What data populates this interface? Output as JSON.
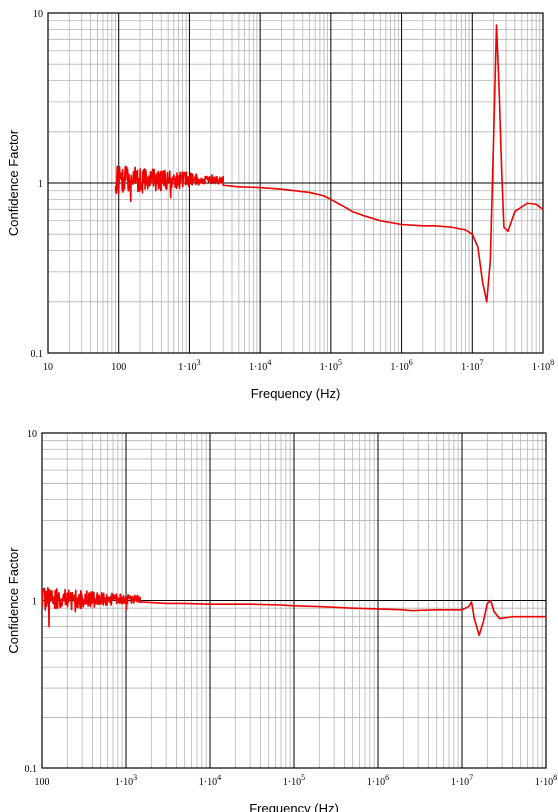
{
  "chart_data": [
    {
      "type": "line",
      "xlabel": "Frequency (Hz)",
      "ylabel": "Confidence Factor",
      "x_scale": "log",
      "y_scale": "log",
      "xlim": [
        10,
        100000000
      ],
      "ylim": [
        0.1,
        10
      ],
      "x_ticks": [
        "10",
        "100",
        "1·10^3",
        "1·10^4",
        "1·10^5",
        "1·10^6",
        "1·10^7",
        "1·10^8"
      ],
      "y_ticks": [
        "10",
        "1",
        "0.1"
      ],
      "grid": true,
      "series": [
        {
          "color": "#ee0000",
          "noise_region": {
            "x_start": 90,
            "x_end": 3000,
            "center": 1.05,
            "amplitude": 0.22
          },
          "x": [
            3000,
            5000,
            10000,
            20000,
            50000,
            80000,
            100000,
            150000,
            200000,
            300000,
            500000,
            1000000,
            2000000,
            3000000,
            5000000,
            8000000,
            10000000,
            12000000,
            14000000,
            16000000,
            18000000,
            20000000,
            22000000,
            24000000,
            26000000,
            28000000,
            32000000,
            40000000,
            60000000,
            80000000,
            100000000
          ],
          "y": [
            0.97,
            0.95,
            0.94,
            0.92,
            0.88,
            0.84,
            0.8,
            0.73,
            0.68,
            0.64,
            0.6,
            0.57,
            0.56,
            0.56,
            0.55,
            0.53,
            0.5,
            0.42,
            0.26,
            0.2,
            0.35,
            1.8,
            8.5,
            3.5,
            1.2,
            0.55,
            0.52,
            0.68,
            0.76,
            0.75,
            0.7
          ]
        }
      ]
    },
    {
      "type": "line",
      "xlabel": "Frequency (Hz)",
      "ylabel": "Confidence Factor",
      "x_scale": "log",
      "y_scale": "log",
      "xlim": [
        100,
        100000000
      ],
      "ylim": [
        0.1,
        10
      ],
      "x_ticks": [
        "100",
        "1·10^3",
        "1·10^4",
        "1·10^5",
        "1·10^6",
        "1·10^7",
        "1·10^8"
      ],
      "y_ticks": [
        "10",
        "1",
        "0.1"
      ],
      "grid": true,
      "series": [
        {
          "color": "#ee0000",
          "noise_region": {
            "x_start": 100,
            "x_end": 1500,
            "center": 1.02,
            "amplitude": 0.18
          },
          "x": [
            1500,
            3000,
            5000,
            10000,
            30000,
            70000,
            100000,
            200000,
            500000,
            1000000,
            2000000,
            2500000,
            5000000,
            10000000,
            12000000,
            13000000,
            14000000,
            16000000,
            18000000,
            20000000,
            22000000,
            24000000,
            28000000,
            40000000,
            60000000,
            100000000
          ],
          "y": [
            0.98,
            0.96,
            0.96,
            0.95,
            0.95,
            0.94,
            0.93,
            0.92,
            0.9,
            0.89,
            0.88,
            0.87,
            0.88,
            0.88,
            0.92,
            0.98,
            0.78,
            0.62,
            0.75,
            0.96,
            1.0,
            0.86,
            0.78,
            0.8,
            0.8,
            0.8
          ]
        }
      ]
    }
  ]
}
